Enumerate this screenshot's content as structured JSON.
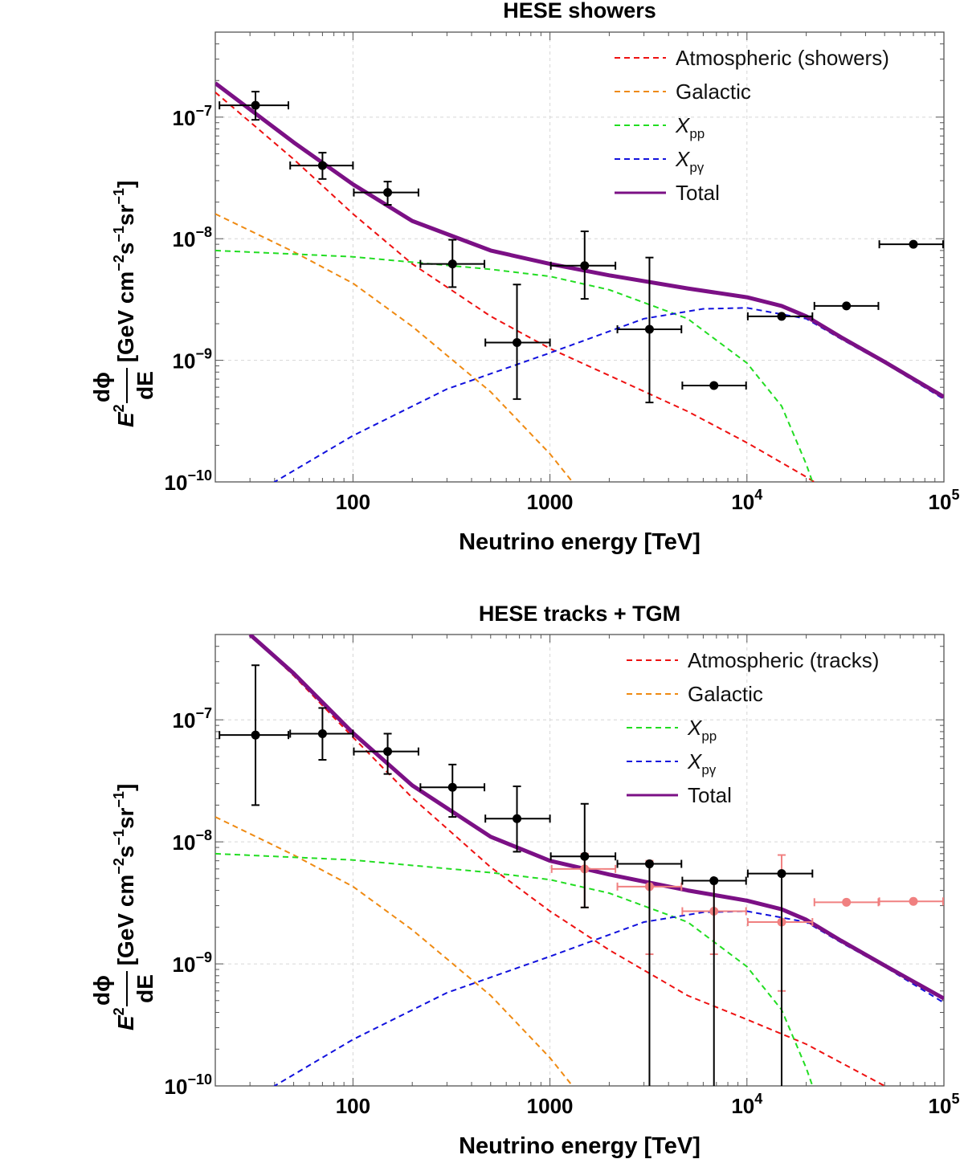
{
  "chart_data": [
    {
      "type": "line",
      "title": "HESE showers",
      "xlabel": "Neutrino energy [TeV]",
      "ylabel": "E^2 dϕ/dE [GeV cm^-2 s^-1 sr^-1]",
      "xscale": "log",
      "yscale": "log",
      "xlim": [
        20,
        100000
      ],
      "ylim": [
        1e-10,
        5e-07
      ],
      "x_ticks": [
        {
          "v": 100,
          "t": "100"
        },
        {
          "v": 1000,
          "t": "1000"
        },
        {
          "v": 10000,
          "t": "10",
          "e": "4"
        },
        {
          "v": 100000,
          "t": "10",
          "e": "5"
        }
      ],
      "y_ticks": [
        {
          "v": 1e-07,
          "t": "10",
          "e": "−7"
        },
        {
          "v": 1e-08,
          "t": "10",
          "e": "−8"
        },
        {
          "v": 1e-09,
          "t": "10",
          "e": "−9"
        },
        {
          "v": 1e-10,
          "t": "10",
          "e": "−10"
        }
      ],
      "grid": true,
      "legend": "top-right",
      "series": [
        {
          "name": "Atmospheric (showers)",
          "key": "atm",
          "color": "#ee1111",
          "dash": "7,5",
          "width": 2,
          "x": [
            20,
            50,
            100,
            200,
            500,
            1000,
            2000,
            5000,
            10000,
            20000,
            100000
          ],
          "y": [
            1.6e-07,
            4.5e-08,
            1.6e-08,
            6.2e-09,
            2.3e-09,
            1.25e-09,
            7.5e-10,
            3.8e-10,
            2.1e-10,
            1.1e-10,
            2.1e-11
          ]
        },
        {
          "name": "Galactic",
          "key": "gal",
          "color": "#ef8a12",
          "dash": "7,5",
          "width": 2,
          "x": [
            20,
            50,
            100,
            200,
            500,
            1000,
            1500
          ],
          "y": [
            1.6e-08,
            7.8e-09,
            4.3e-09,
            1.9e-09,
            5.5e-10,
            1.7e-10,
            7.5e-11
          ]
        },
        {
          "name": "X_pp",
          "key": "xpp",
          "base": "X",
          "sub": "pp",
          "color": "#22dd22",
          "dash": "7,5",
          "width": 2,
          "x": [
            20,
            100,
            500,
            1000,
            2000,
            5000,
            10000,
            15000,
            20000,
            25000
          ],
          "y": [
            8e-09,
            7.1e-09,
            5.6e-09,
            4.9e-09,
            3.8e-09,
            2.2e-09,
            9.5e-10,
            4.2e-10,
            1.4e-10,
            5e-11
          ]
        },
        {
          "name": "X_pγ",
          "key": "xpg",
          "base": "X",
          "sub": "pγ",
          "color": "#1111dd",
          "dash": "7,5",
          "width": 2,
          "x": [
            30,
            40,
            100,
            300,
            1000,
            3000,
            6000,
            10000,
            20000,
            30000,
            50000,
            100000
          ],
          "y": [
            7e-11,
            1e-10,
            2.4e-10,
            5.8e-10,
            1.15e-09,
            2.2e-09,
            2.65e-09,
            2.7e-09,
            2.2e-09,
            1.5e-09,
            9.5e-10,
            4.8e-10
          ]
        },
        {
          "name": "Total",
          "key": "tot",
          "color": "#7b1085",
          "dash": "",
          "width": 5,
          "x": [
            20,
            50,
            100,
            200,
            500,
            1000,
            2000,
            5000,
            10000,
            15000,
            20000,
            30000,
            50000,
            100000
          ],
          "y": [
            1.9e-07,
            6.2e-08,
            2.8e-08,
            1.4e-08,
            8e-09,
            6.2e-09,
            5e-09,
            3.9e-09,
            3.3e-09,
            2.8e-09,
            2.3e-09,
            1.55e-09,
            9.7e-10,
            5e-10
          ]
        }
      ],
      "points": [
        {
          "color": "#000000",
          "data": [
            {
              "x": 32,
              "y": 1.25e-07,
              "xlo": 21,
              "xhi": 47,
              "ylo": 9.5e-08,
              "yhi": 1.62e-07
            },
            {
              "x": 70,
              "y": 4e-08,
              "xlo": 48,
              "xhi": 100,
              "ylo": 3.1e-08,
              "yhi": 5.1e-08
            },
            {
              "x": 150,
              "y": 2.4e-08,
              "xlo": 101,
              "xhi": 215,
              "ylo": 1.9e-08,
              "yhi": 2.95e-08
            },
            {
              "x": 320,
              "y": 6.2e-09,
              "xlo": 220,
              "xhi": 465,
              "ylo": 4e-09,
              "yhi": 9.8e-09
            },
            {
              "x": 680,
              "y": 1.4e-09,
              "xlo": 470,
              "xhi": 1000,
              "ylo": 4.8e-10,
              "yhi": 4.2e-09
            },
            {
              "x": 1500,
              "y": 6e-09,
              "xlo": 1010,
              "xhi": 2150,
              "ylo": 3.2e-09,
              "yhi": 1.15e-08
            },
            {
              "x": 3200,
              "y": 1.8e-09,
              "xlo": 2200,
              "xhi": 4650,
              "ylo": 4.5e-10,
              "yhi": 7e-09
            },
            {
              "x": 6800,
              "y": 6.2e-10,
              "xlo": 4700,
              "xhi": 9900,
              "ylo": null,
              "yhi": null
            },
            {
              "x": 15000,
              "y": 2.3e-09,
              "xlo": 10100,
              "xhi": 21500,
              "ylo": null,
              "yhi": null
            },
            {
              "x": 32000,
              "y": 2.8e-09,
              "xlo": 22000,
              "xhi": 46500,
              "ylo": null,
              "yhi": null
            },
            {
              "x": 70000,
              "y": 9e-09,
              "xlo": 47000,
              "xhi": 99000,
              "ylo": null,
              "yhi": null
            }
          ]
        }
      ]
    },
    {
      "type": "line",
      "title": "HESE tracks + TGM",
      "xlabel": "Neutrino energy [TeV]",
      "ylabel": "E^2 dϕ/dE [GeV cm^-2 s^-1 sr^-1]",
      "xscale": "log",
      "yscale": "log",
      "xlim": [
        20,
        100000
      ],
      "ylim": [
        1e-10,
        5e-07
      ],
      "x_ticks": [
        {
          "v": 100,
          "t": "100"
        },
        {
          "v": 1000,
          "t": "1000"
        },
        {
          "v": 10000,
          "t": "10",
          "e": "4"
        },
        {
          "v": 100000,
          "t": "10",
          "e": "5"
        }
      ],
      "y_ticks": [
        {
          "v": 1e-07,
          "t": "10",
          "e": "−7"
        },
        {
          "v": 1e-08,
          "t": "10",
          "e": "−8"
        },
        {
          "v": 1e-09,
          "t": "10",
          "e": "−9"
        },
        {
          "v": 1e-10,
          "t": "10",
          "e": "−10"
        }
      ],
      "grid": true,
      "legend": "top-right",
      "series": [
        {
          "name": "Atmospheric (tracks)",
          "key": "atm",
          "color": "#ee1111",
          "dash": "7,5",
          "width": 2,
          "x": [
            30,
            50,
            100,
            200,
            500,
            1000,
            2000,
            5000,
            10000,
            20000,
            50000
          ],
          "y": [
            5e-07,
            2.3e-07,
            7.2e-08,
            2.3e-08,
            6.2e-09,
            2.7e-09,
            1.3e-09,
            5.5e-10,
            3.5e-10,
            2.2e-10,
            1e-10
          ]
        },
        {
          "name": "Galactic",
          "key": "gal",
          "color": "#ef8a12",
          "dash": "7,5",
          "width": 2,
          "x": [
            20,
            50,
            100,
            200,
            500,
            1000,
            1500
          ],
          "y": [
            1.6e-08,
            7.8e-09,
            4.3e-09,
            1.9e-09,
            5.5e-10,
            1.7e-10,
            7.5e-11
          ]
        },
        {
          "name": "X_pp",
          "key": "xpp",
          "base": "X",
          "sub": "pp",
          "color": "#22dd22",
          "dash": "7,5",
          "width": 2,
          "x": [
            20,
            100,
            500,
            1000,
            2000,
            5000,
            10000,
            15000,
            20000,
            25000
          ],
          "y": [
            8e-09,
            7.1e-09,
            5.6e-09,
            4.9e-09,
            3.8e-09,
            2.2e-09,
            9.5e-10,
            4.2e-10,
            1.4e-10,
            5e-11
          ]
        },
        {
          "name": "X_pγ",
          "key": "xpg",
          "base": "X",
          "sub": "pγ",
          "color": "#1111dd",
          "dash": "7,5",
          "width": 2,
          "x": [
            30,
            40,
            100,
            300,
            1000,
            3000,
            6000,
            10000,
            20000,
            30000,
            50000,
            100000
          ],
          "y": [
            7e-11,
            1e-10,
            2.4e-10,
            5.8e-10,
            1.15e-09,
            2.2e-09,
            2.65e-09,
            2.7e-09,
            2.2e-09,
            1.5e-09,
            9.5e-10,
            4.8e-10
          ]
        },
        {
          "name": "Total",
          "key": "tot",
          "color": "#7b1085",
          "dash": "",
          "width": 5,
          "x": [
            30,
            50,
            100,
            200,
            500,
            1000,
            2000,
            5000,
            10000,
            15000,
            20000,
            30000,
            50000,
            100000
          ],
          "y": [
            5e-07,
            2.4e-07,
            7.8e-08,
            2.9e-08,
            1.1e-08,
            7e-09,
            5.4e-09,
            4e-09,
            3.3e-09,
            2.8e-09,
            2.3e-09,
            1.55e-09,
            9.7e-10,
            5.2e-10
          ]
        }
      ],
      "points": [
        {
          "color": "#f08080",
          "data": [
            {
              "x": 1500,
              "y": 6e-09,
              "xlo": 1020,
              "xhi": 2150,
              "ylo": 2.9e-09,
              "yhi": 8e-09
            },
            {
              "x": 3200,
              "y": 4.3e-09,
              "xlo": 2200,
              "xhi": 4650,
              "ylo": 1.2e-09,
              "yhi": 7e-09
            },
            {
              "x": 6800,
              "y": 2.7e-09,
              "xlo": 4700,
              "xhi": 9900,
              "ylo": 1.2e-09,
              "yhi": 4.8e-09
            },
            {
              "x": 15000,
              "y": 2.2e-09,
              "xlo": 10100,
              "xhi": 21500,
              "ylo": 6e-10,
              "yhi": 7.8e-09
            },
            {
              "x": 32000,
              "y": 3.2e-09,
              "xlo": 22000,
              "xhi": 46500,
              "ylo": null,
              "yhi": null
            },
            {
              "x": 70000,
              "y": 3.25e-09,
              "xlo": 47000,
              "xhi": 99000,
              "ylo": null,
              "yhi": null
            }
          ]
        },
        {
          "color": "#000000",
          "data": [
            {
              "x": 32,
              "y": 7.5e-08,
              "xlo": 21,
              "xhi": 47,
              "ylo": 2e-08,
              "yhi": 2.8e-07
            },
            {
              "x": 70,
              "y": 7.7e-08,
              "xlo": 48,
              "xhi": 100,
              "ylo": 4.7e-08,
              "yhi": 1.25e-07
            },
            {
              "x": 150,
              "y": 5.5e-08,
              "xlo": 101,
              "xhi": 215,
              "ylo": 3.6e-08,
              "yhi": 7.7e-08
            },
            {
              "x": 320,
              "y": 2.8e-08,
              "xlo": 220,
              "xhi": 465,
              "ylo": 1.6e-08,
              "yhi": 4.3e-08
            },
            {
              "x": 680,
              "y": 1.55e-08,
              "xlo": 470,
              "xhi": 1000,
              "ylo": 8.3e-09,
              "yhi": 2.85e-08
            },
            {
              "x": 1500,
              "y": 7.6e-09,
              "xlo": 1010,
              "xhi": 2150,
              "ylo": 2.9e-09,
              "yhi": 2.05e-08
            },
            {
              "x": 3200,
              "y": 6.6e-09,
              "xlo": 2200,
              "xhi": 4650,
              "ylo": 1e-11,
              "yhi": null
            },
            {
              "x": 6800,
              "y": 4.8e-09,
              "xlo": 4700,
              "xhi": 9900,
              "ylo": 1e-11,
              "yhi": null
            },
            {
              "x": 15000,
              "y": 5.5e-09,
              "xlo": 10100,
              "xhi": 21500,
              "ylo": 1e-11,
              "yhi": null
            }
          ]
        }
      ]
    }
  ]
}
